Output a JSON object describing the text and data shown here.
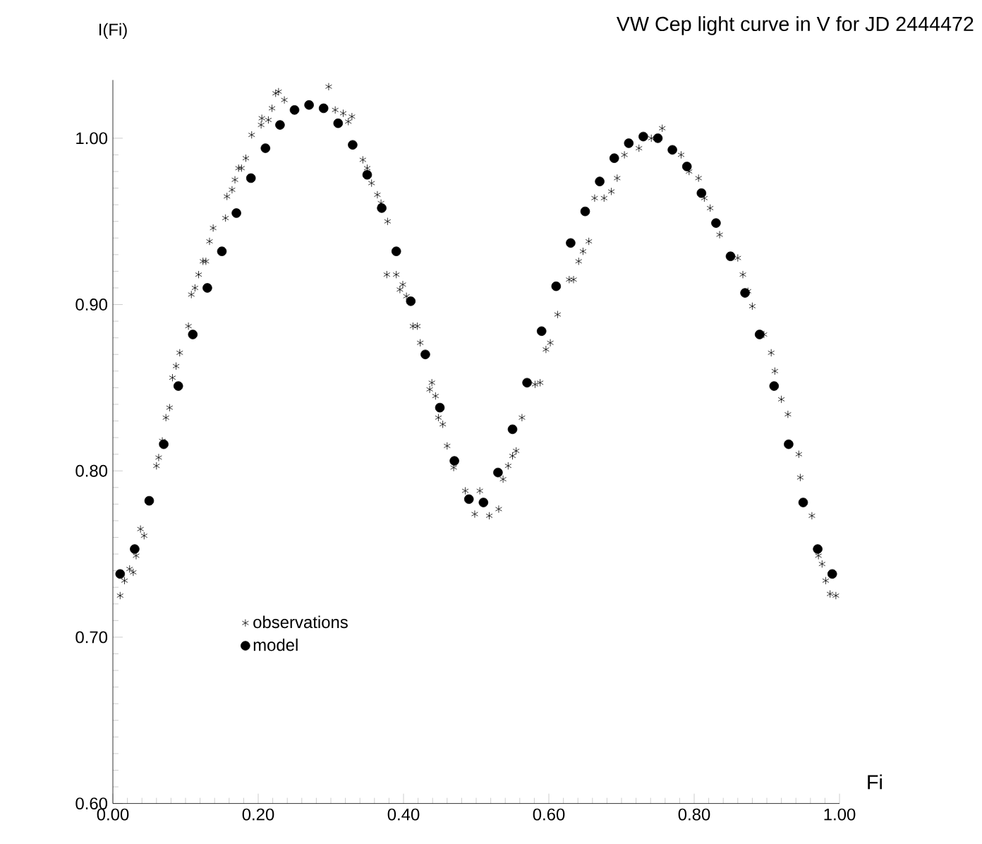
{
  "chart_data": {
    "type": "scatter",
    "title": "VW Cep light curve in V for JD 2444472",
    "xlabel": "Fi",
    "ylabel": "I(Fi)",
    "xlim": [
      0,
      1
    ],
    "ylim": [
      0.6,
      1.035
    ],
    "xticks": [
      {
        "value": 0,
        "label": "0.00"
      },
      {
        "value": 0.2,
        "label": "0.20"
      },
      {
        "value": 0.4,
        "label": "0.40"
      },
      {
        "value": 0.6,
        "label": "0.60"
      },
      {
        "value": 0.8,
        "label": "0.80"
      },
      {
        "value": 1,
        "label": "1.00"
      }
    ],
    "yticks": [
      {
        "value": 0.6,
        "label": "0.60"
      },
      {
        "value": 0.7,
        "label": "0.70"
      },
      {
        "value": 0.8,
        "label": "0.80"
      },
      {
        "value": 0.9,
        "label": "0.90"
      },
      {
        "value": 1.0,
        "label": "1.00"
      }
    ],
    "grid": false,
    "legend": "bottom left",
    "series": [
      {
        "name": "observations",
        "color": "#000000",
        "marker": "cross",
        "x": [
          0.01,
          0.016,
          0.023,
          0.028,
          0.032,
          0.038,
          0.043,
          0.06,
          0.063,
          0.068,
          0.073,
          0.078,
          0.082,
          0.087,
          0.092,
          0.104,
          0.108,
          0.113,
          0.118,
          0.124,
          0.128,
          0.133,
          0.138,
          0.155,
          0.157,
          0.164,
          0.168,
          0.173,
          0.177,
          0.183,
          0.191,
          0.204,
          0.205,
          0.214,
          0.219,
          0.224,
          0.228,
          0.236,
          0.297,
          0.306,
          0.317,
          0.324,
          0.329,
          0.344,
          0.35,
          0.356,
          0.364,
          0.369,
          0.378,
          0.377,
          0.39,
          0.395,
          0.399,
          0.404,
          0.413,
          0.419,
          0.423,
          0.436,
          0.439,
          0.444,
          0.448,
          0.454,
          0.46,
          0.469,
          0.485,
          0.498,
          0.505,
          0.518,
          0.531,
          0.537,
          0.544,
          0.55,
          0.555,
          0.563,
          0.581,
          0.588,
          0.596,
          0.602,
          0.612,
          0.628,
          0.634,
          0.641,
          0.647,
          0.655,
          0.663,
          0.676,
          0.686,
          0.694,
          0.704,
          0.724,
          0.741,
          0.756,
          0.782,
          0.793,
          0.806,
          0.814,
          0.822,
          0.835,
          0.86,
          0.867,
          0.874,
          0.88,
          0.896,
          0.906,
          0.911,
          0.92,
          0.929,
          0.944,
          0.946,
          0.962,
          0.971,
          0.976,
          0.981,
          0.987,
          0.995
        ],
        "values": [
          0.725,
          0.734,
          0.741,
          0.739,
          0.749,
          0.765,
          0.761,
          0.803,
          0.808,
          0.818,
          0.832,
          0.838,
          0.856,
          0.863,
          0.871,
          0.887,
          0.906,
          0.91,
          0.918,
          0.926,
          0.926,
          0.938,
          0.946,
          0.952,
          0.965,
          0.969,
          0.975,
          0.982,
          0.982,
          0.988,
          1.002,
          1.008,
          1.012,
          1.011,
          1.018,
          1.027,
          1.028,
          1.023,
          1.031,
          1.017,
          1.015,
          1.01,
          1.013,
          0.987,
          0.982,
          0.973,
          0.966,
          0.961,
          0.95,
          0.918,
          0.918,
          0.909,
          0.912,
          0.905,
          0.887,
          0.887,
          0.877,
          0.849,
          0.853,
          0.845,
          0.832,
          0.828,
          0.815,
          0.802,
          0.788,
          0.774,
          0.788,
          0.773,
          0.777,
          0.795,
          0.803,
          0.809,
          0.812,
          0.832,
          0.852,
          0.853,
          0.873,
          0.877,
          0.894,
          0.915,
          0.915,
          0.926,
          0.932,
          0.938,
          0.964,
          0.964,
          0.968,
          0.976,
          0.99,
          0.994,
          1.0,
          1.006,
          0.99,
          0.98,
          0.976,
          0.964,
          0.958,
          0.942,
          0.928,
          0.918,
          0.908,
          0.899,
          0.882,
          0.871,
          0.86,
          0.843,
          0.834,
          0.81,
          0.796,
          0.773,
          0.749,
          0.744,
          0.734,
          0.726,
          0.725
        ]
      },
      {
        "name": "model",
        "color": "#000000",
        "marker": "circle",
        "x": [
          0.01,
          0.03,
          0.05,
          0.07,
          0.09,
          0.11,
          0.13,
          0.15,
          0.17,
          0.19,
          0.21,
          0.23,
          0.25,
          0.27,
          0.29,
          0.31,
          0.33,
          0.35,
          0.37,
          0.39,
          0.41,
          0.43,
          0.45,
          0.47,
          0.49,
          0.51,
          0.53,
          0.55,
          0.57,
          0.59,
          0.61,
          0.63,
          0.65,
          0.67,
          0.69,
          0.71,
          0.73,
          0.75,
          0.77,
          0.79,
          0.81,
          0.83,
          0.85,
          0.87,
          0.89,
          0.91,
          0.93,
          0.95,
          0.97,
          0.99
        ],
        "values": [
          0.738,
          0.753,
          0.782,
          0.816,
          0.851,
          0.882,
          0.91,
          0.932,
          0.955,
          0.976,
          0.994,
          1.008,
          1.017,
          1.02,
          1.018,
          1.009,
          0.996,
          0.978,
          0.958,
          0.932,
          0.902,
          0.87,
          0.838,
          0.806,
          0.783,
          0.781,
          0.799,
          0.825,
          0.853,
          0.884,
          0.911,
          0.937,
          0.956,
          0.974,
          0.988,
          0.997,
          1.001,
          1.0,
          0.993,
          0.983,
          0.967,
          0.949,
          0.929,
          0.907,
          0.882,
          0.851,
          0.816,
          0.781,
          0.753,
          0.738
        ]
      }
    ]
  }
}
